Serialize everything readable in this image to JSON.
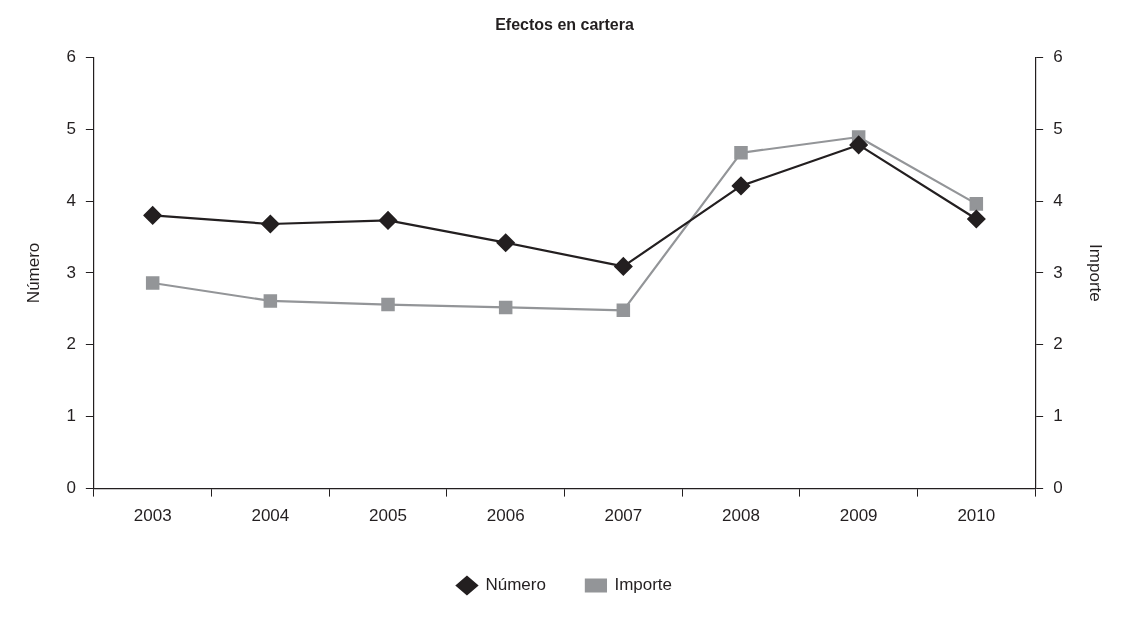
{
  "chart_data": {
    "type": "line",
    "title": "Efectos en cartera",
    "ylabel": "Número",
    "y2label": "Importe",
    "categories": [
      "2003",
      "2004",
      "2005",
      "2006",
      "2007",
      "2008",
      "2009",
      "2010"
    ],
    "series": [
      {
        "name": "Número",
        "color": "#231f20",
        "marker": "diamond",
        "values": [
          3.8,
          3.68,
          3.73,
          3.42,
          3.09,
          4.21,
          4.78,
          3.75
        ]
      },
      {
        "name": "Importe",
        "color": "#939598",
        "marker": "square",
        "axis": "y2",
        "values": [
          2.86,
          2.61,
          2.56,
          2.52,
          2.48,
          4.67,
          4.89,
          3.96
        ]
      }
    ],
    "ylim": [
      0,
      6
    ],
    "yticks": [
      0,
      1,
      2,
      3,
      4,
      5,
      6
    ],
    "y2lim": [
      0,
      6
    ],
    "y2ticks": [
      0,
      1,
      2,
      3,
      4,
      5,
      6
    ],
    "grid": false,
    "legend": "bottom"
  }
}
